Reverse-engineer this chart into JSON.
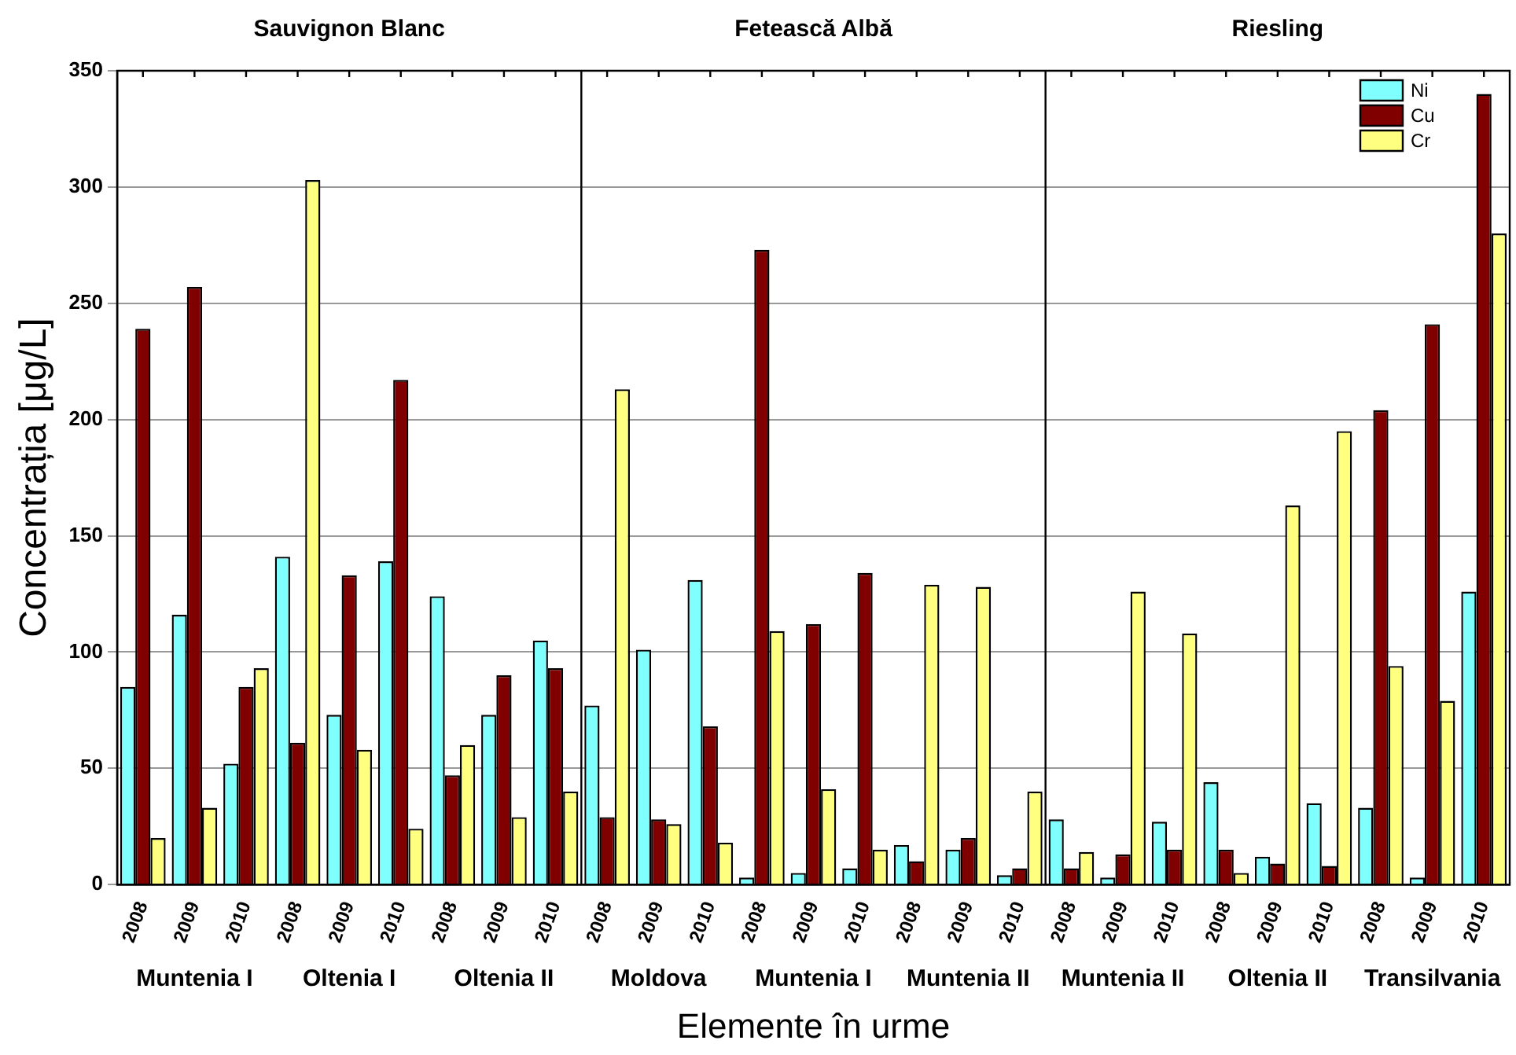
{
  "chart_data": {
    "type": "bar",
    "xlabel": "Elemente în urme",
    "ylabel": "Concentrația [μg/L]",
    "categories": [
      "2008",
      "2009",
      "2010",
      "2008",
      "2009",
      "2010",
      "2008",
      "2009",
      "2010",
      "2008",
      "2009",
      "2010",
      "2008",
      "2009",
      "2010",
      "2008",
      "2009",
      "2010",
      "2008",
      "2009",
      "2010",
      "2008",
      "2009",
      "2010",
      "2008",
      "2009",
      "2010"
    ],
    "series": [
      {
        "name": "Ni",
        "color": "#80ffff",
        "values": [
          85,
          116,
          52,
          141,
          73,
          139,
          124,
          73,
          105,
          77,
          101,
          131,
          3,
          5,
          7,
          17,
          15,
          4,
          28,
          3,
          27,
          44,
          12,
          35,
          33,
          3,
          126
        ]
      },
      {
        "name": "Cu",
        "color": "#800000",
        "values": [
          239,
          257,
          85,
          61,
          133,
          217,
          47,
          90,
          93,
          29,
          28,
          68,
          273,
          112,
          134,
          10,
          20,
          7,
          7,
          13,
          15,
          15,
          9,
          8,
          204,
          241,
          340
        ]
      },
      {
        "name": "Cr",
        "color": "#ffff80",
        "values": [
          20,
          33,
          93,
          303,
          58,
          24,
          60,
          29,
          40,
          213,
          26,
          18,
          109,
          41,
          15,
          129,
          128,
          40,
          14,
          126,
          108,
          5,
          163,
          195,
          94,
          79,
          280
        ]
      }
    ],
    "annotations": [
      "Sauvignon Blanc",
      "Fetească Albă",
      "Riesling",
      "Muntenia I",
      "Oltenia I",
      "Oltenia II",
      "Moldova",
      "Muntenia I",
      "Muntenia II",
      "Muntenia II",
      "Oltenia II",
      "Transilvania"
    ],
    "ylim": [
      0,
      350
    ],
    "yticks": [
      0,
      50,
      100,
      150,
      200,
      250,
      300,
      350
    ],
    "grid": "y",
    "legend": "top right"
  }
}
